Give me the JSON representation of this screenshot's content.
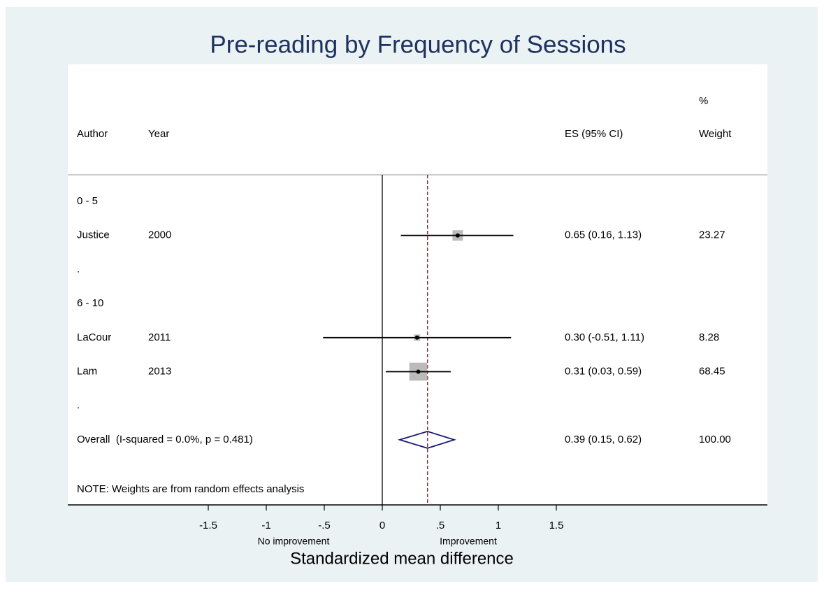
{
  "chart_data": {
    "type": "forest",
    "title": "Pre-reading by Frequency of Sessions",
    "x_label": "Standardized mean difference",
    "x_side_labels": [
      "No improvement",
      "Improvement"
    ],
    "xlim": [
      -1.5,
      1.5
    ],
    "xticks": [
      -1.5,
      -1,
      {
        "value": -0.5,
        "label": "-.5"
      },
      0,
      {
        "value": 0.5,
        "label": ".5"
      },
      1,
      1.5
    ],
    "columns": {
      "author": "Author",
      "year": "Year",
      "es": "ES (95% CI)",
      "weight_top": "%",
      "weight": "Weight"
    },
    "note": "NOTE: Weights are from random effects analysis",
    "box_color": "#bbbbbb",
    "diamond_color": "#1a1a6e",
    "ref_line_color": "#8b1a1a",
    "rows": [
      {
        "label": "0 - 5"
      },
      {
        "label": "Justice",
        "year": "2000",
        "es": 0.65,
        "lo": 0.16,
        "hi": 1.13,
        "ci_label": "0.65 (0.16, 1.13)",
        "weight": 23.27
      },
      {
        "label": "."
      },
      {
        "label": "6 - 10"
      },
      {
        "label": "LaCour",
        "year": "2011",
        "es": 0.3,
        "lo": -0.51,
        "hi": 1.11,
        "ci_label": "0.30 (-0.51, 1.11)",
        "weight": 8.28
      },
      {
        "label": "Lam",
        "year": "2013",
        "es": 0.31,
        "lo": 0.03,
        "hi": 0.59,
        "ci_label": "0.31 (0.03, 0.59)",
        "weight": 68.45
      },
      {
        "label": "."
      },
      {
        "label": "Overall  (I-squared = 0.0%, p = 0.481)",
        "overall": true,
        "es": 0.39,
        "lo": 0.15,
        "hi": 0.62,
        "ci_label": "0.39 (0.15, 0.62)",
        "weight": {
          "value": 100,
          "label": "100.00"
        }
      }
    ]
  }
}
